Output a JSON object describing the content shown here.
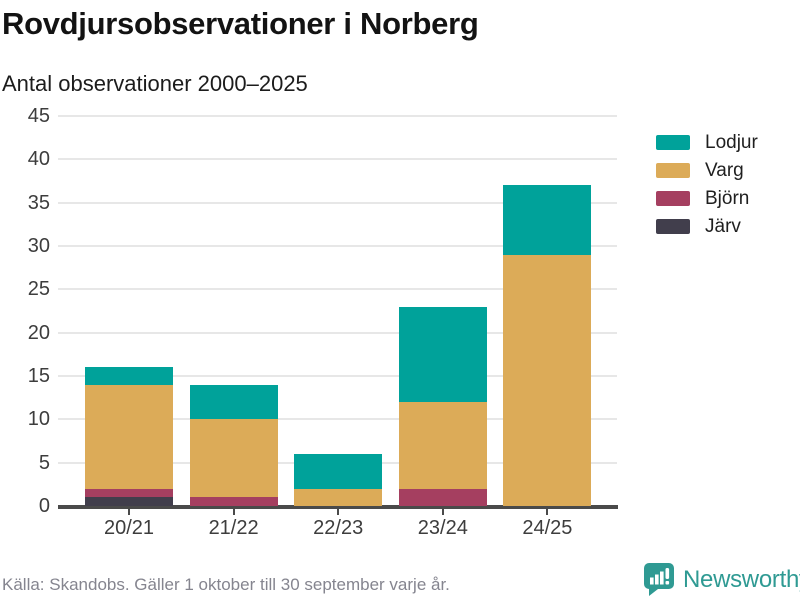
{
  "header": {
    "title": "Rovdjursobservationer i Norberg",
    "subtitle": "Antal observationer 2000–2025"
  },
  "chart_data": {
    "type": "bar",
    "stacked": true,
    "title": "Rovdjursobservationer i Norberg",
    "subtitle": "Antal observationer 2000–2025",
    "categories": [
      "20/21",
      "21/22",
      "22/23",
      "23/24",
      "24/25"
    ],
    "series": [
      {
        "name": "Lodjur",
        "color": "#00a29a",
        "values": [
          2,
          4,
          4,
          11,
          8
        ]
      },
      {
        "name": "Varg",
        "color": "#dcab58",
        "values": [
          12,
          9,
          2,
          10,
          29
        ]
      },
      {
        "name": "Björn",
        "color": "#a53f60",
        "values": [
          1,
          1,
          0,
          2,
          0
        ]
      },
      {
        "name": "Järv",
        "color": "#413e4c",
        "values": [
          1,
          0,
          0,
          0,
          0
        ]
      }
    ],
    "stack_order_bottom_to_top": [
      "Järv",
      "Björn",
      "Varg",
      "Lodjur"
    ],
    "totals": [
      16,
      14,
      6,
      23,
      37
    ],
    "y_ticks": [
      0,
      5,
      10,
      15,
      20,
      25,
      30,
      35,
      40,
      45
    ],
    "ylim": [
      0,
      45
    ],
    "xlabel": "",
    "ylabel": "",
    "grid": true,
    "legend_position": "right"
  },
  "footer": {
    "source": "Källa: Skandobs. Gäller 1 oktober till 30 september varje år.",
    "brand": "Newsworthy"
  },
  "colors": {
    "brand_teal": "#2f9a93",
    "axis": "#4a4a4a",
    "gridline": "#e7e7e7"
  }
}
